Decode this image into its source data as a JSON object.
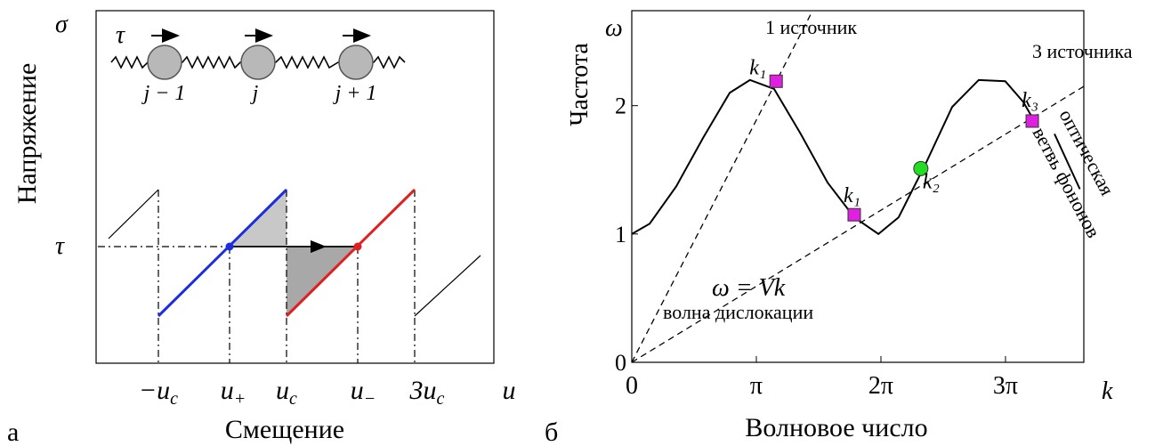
{
  "panel_a": {
    "letter": "а",
    "y_label": "Напряжение",
    "sigma": "σ",
    "tau_top": "τ",
    "tau_axis": "τ",
    "site_labels": [
      "j − 1",
      "j",
      "j + 1"
    ],
    "x_labels": [
      {
        "base": "−u",
        "sub": "c"
      },
      {
        "base": "u",
        "sub": "+"
      },
      {
        "base": "u",
        "sub": "c"
      },
      {
        "base": "u",
        "sub": "−"
      },
      {
        "base": "3u",
        "sub": "c"
      }
    ],
    "u": "u",
    "x_title": "Смещение"
  },
  "chart_data": {
    "type": "line",
    "letter": "б",
    "y_label": "Частота",
    "y_symbol": "ω",
    "x_label": "Волновое число",
    "x_symbol": "k",
    "xlim": [
      0,
      11.4
    ],
    "ylim": [
      0,
      2.74
    ],
    "xticks": [
      0,
      {
        "value": 3.1416,
        "label": "π"
      },
      {
        "value": 6.2832,
        "label": "2π"
      },
      {
        "value": 9.4248,
        "label": "3π"
      }
    ],
    "yticks": [
      0,
      1,
      2
    ],
    "series": [
      {
        "color": "#000000",
        "x": [
          0,
          0.45,
          1.12,
          1.8,
          2.47,
          2.98,
          3.59,
          4.26,
          4.94,
          5.61,
          6.22,
          6.73,
          7.4,
          8.08,
          8.75,
          9.42,
          9.87,
          10.21
        ],
        "values": [
          1.0,
          1.08,
          1.37,
          1.75,
          2.1,
          2.2,
          2.13,
          1.78,
          1.4,
          1.13,
          1.0,
          1.13,
          1.54,
          1.99,
          2.2,
          2.19,
          2.03,
          1.85
        ]
      },
      {
        "color": "#000000",
        "x": [
          10.66,
          11.3
        ],
        "values": [
          1.78,
          1.35
        ]
      }
    ],
    "rays": [
      {
        "x": [
          0,
          4.56
        ],
        "values": [
          0,
          2.74
        ]
      },
      {
        "x": [
          0,
          11.4
        ],
        "values": [
          0,
          2.15
        ]
      }
    ],
    "markers": [
      {
        "shape": "square",
        "color": "#e020e0",
        "x": 3.64,
        "value": 2.19,
        "label": "k₁"
      },
      {
        "shape": "square",
        "color": "#e020e0",
        "x": 5.61,
        "value": 1.15,
        "label": "k₁"
      },
      {
        "shape": "circle",
        "color": "#22dd22",
        "x": 7.29,
        "value": 1.51,
        "label": "k₂"
      },
      {
        "shape": "square",
        "color": "#e020e0",
        "x": 10.1,
        "value": 1.88,
        "label": "k₃"
      }
    ],
    "annotations": [
      "1 источник",
      "3 источника",
      "ω = Vk",
      "волна дислокации",
      "оптическая",
      "ветвь фононов"
    ]
  }
}
